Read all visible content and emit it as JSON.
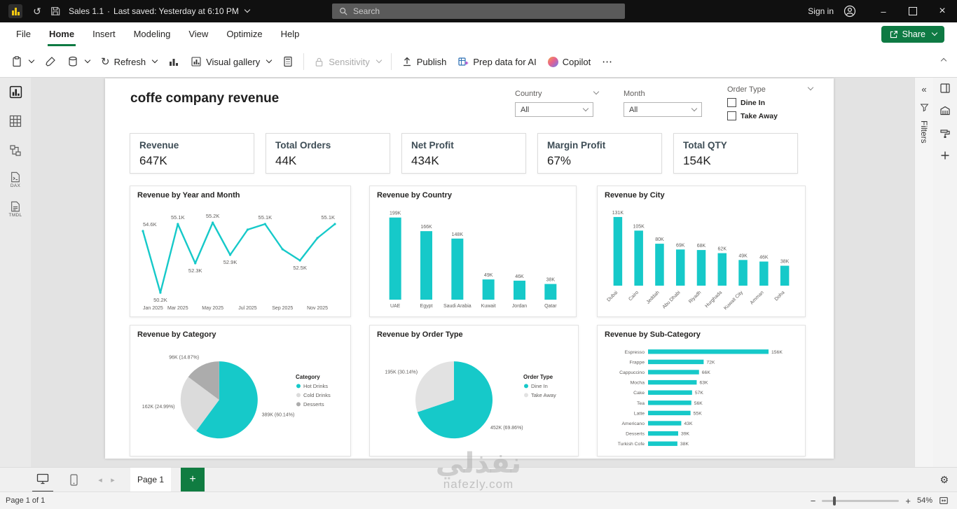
{
  "colors": {
    "accent": "#16C9C9",
    "green": "#0E7A43",
    "pie_gray_light": "#DBDBDB",
    "pie_gray_dark": "#ACACAC"
  },
  "icons": {
    "undo": "↺",
    "refresh": "↻",
    "more": "⋯",
    "gear": "⚙",
    "minimize": "–",
    "close": "×",
    "zoom_in": "+",
    "zoom_out": "−",
    "prev_page": "◂",
    "next_page": "▸",
    "collapse_left": "«",
    "add_page": "+"
  },
  "titlebar": {
    "report_name": "Sales 1.1",
    "separator": "·",
    "saved_status": "Last saved: Yesterday at 6:10 PM",
    "search_placeholder": "Search",
    "sign_in_label": "Sign in"
  },
  "menu": {
    "items": [
      "File",
      "Home",
      "Insert",
      "Modeling",
      "View",
      "Optimize",
      "Help"
    ],
    "share_label": "Share"
  },
  "ribbon": {
    "refresh": "Refresh",
    "visual_gallery": "Visual gallery",
    "sensitivity": "Sensitivity",
    "publish": "Publish",
    "prep_data": "Prep data for AI",
    "copilot": "Copilot"
  },
  "left_rail": {
    "dax_label": "DAX",
    "tmdl_label": "TMDL"
  },
  "filters": {
    "label": "Filters"
  },
  "page": {
    "title": "coffe company revenue",
    "slicers": {
      "country": {
        "label": "Country",
        "value": "All"
      },
      "month": {
        "label": "Month",
        "value": "All"
      },
      "order_type": {
        "label": "Order Type",
        "options": [
          "Dine In",
          "Take Away"
        ]
      }
    },
    "kpis": [
      {
        "label": "Revenue",
        "value": "647K"
      },
      {
        "label": "Total Orders",
        "value": "44K"
      },
      {
        "label": "Net Profit",
        "value": "434K"
      },
      {
        "label": "Margin Profit",
        "value": "67%"
      },
      {
        "label": "Total QTY",
        "value": "154K"
      }
    ]
  },
  "chart_data": [
    {
      "id": "revenue-by-year-and-month",
      "type": "line",
      "title": "Revenue by Year and Month",
      "x": [
        "Jan 2025",
        "Feb 2025",
        "Mar 2025",
        "Apr 2025",
        "May 2025",
        "Jun 2025",
        "Jul 2025",
        "Aug 2025",
        "Sep 2025",
        "Oct 2025",
        "Nov 2025",
        "Dec 2025"
      ],
      "values": [
        54.6,
        50.2,
        55.1,
        52.3,
        55.2,
        52.9,
        54.7,
        55.1,
        53.3,
        52.5,
        54.1,
        55.1
      ],
      "point_labels": [
        "54.6K",
        "50.2K",
        "55.1K",
        "52.3K",
        "55.2K",
        "52.9K",
        "",
        "55.1K",
        "",
        "52.5K",
        "",
        "55.1K"
      ],
      "axis_ticks": [
        "Jan 2025",
        "Mar 2025",
        "May 2025",
        "Jul 2025",
        "Sep 2025",
        "Nov 2025"
      ],
      "ylim": [
        49.9,
        55.7
      ],
      "unit": "K"
    },
    {
      "id": "revenue-by-country",
      "type": "column",
      "title": "Revenue by Country",
      "categories": [
        "UAE",
        "Egypt",
        "Saudi Arabia",
        "Kuwait",
        "Jordan",
        "Qatar"
      ],
      "values": [
        199,
        166,
        148,
        49,
        46,
        38
      ],
      "labels": [
        "199K",
        "166K",
        "148K",
        "49K",
        "46K",
        "38K"
      ],
      "rotate_labels": false
    },
    {
      "id": "revenue-by-city",
      "type": "column",
      "title": "Revenue by City",
      "categories": [
        "Dubai",
        "Cairo",
        "Jeddah",
        "Abu Dhabi",
        "Riyadh",
        "Hurghada",
        "Kuwait City",
        "Amman",
        "Doha"
      ],
      "values": [
        131,
        105,
        80,
        69,
        68,
        62,
        49,
        46,
        38
      ],
      "labels": [
        "131K",
        "105K",
        "80K",
        "69K",
        "68K",
        "62K",
        "49K",
        "46K",
        "38K"
      ],
      "rotate_labels": true
    },
    {
      "id": "revenue-by-category",
      "type": "pie",
      "title": "Revenue by Category",
      "legend_title": "Category",
      "slices": [
        {
          "name": "Hot  Drinks",
          "value": 389,
          "pct": 60.14,
          "label": "389K (60.14%)",
          "color": "#16C9C9"
        },
        {
          "name": "Cold  Drinks",
          "value": 162,
          "pct": 24.99,
          "label": "162K (24.99%)",
          "color": "#DBDBDB"
        },
        {
          "name": "Desserts",
          "value": 96,
          "pct": 14.87,
          "label": "96K (14.87%)",
          "color": "#ACACAC"
        }
      ]
    },
    {
      "id": "revenue-by-order-type",
      "type": "pie",
      "title": "Revenue by Order Type",
      "legend_title": "Order Type",
      "slices": [
        {
          "name": "Dine In",
          "value": 452,
          "pct": 69.86,
          "label": "452K (69.86%)",
          "color": "#16C9C9"
        },
        {
          "name": "Take Away",
          "value": 195,
          "pct": 30.14,
          "label": "195K (30.14%)",
          "color": "#E2E2E2"
        }
      ]
    },
    {
      "id": "revenue-by-sub-category",
      "type": "hbar",
      "title": "Revenue by Sub-Category",
      "categories": [
        "Espresso",
        "Frappe",
        "Cappuccino",
        "Mocha",
        "Cake",
        "Tea",
        "Latte",
        "Americano",
        "Desserts",
        "Turkish Cofe"
      ],
      "values": [
        156,
        72,
        66,
        63,
        57,
        56,
        55,
        43,
        39,
        38
      ],
      "labels": [
        "156K",
        "72K",
        "66K",
        "63K",
        "57K",
        "56K",
        "55K",
        "43K",
        "39K",
        "38K"
      ]
    }
  ],
  "tabs": {
    "page_tab": "Page 1"
  },
  "statusbar": {
    "page_indicator": "Page 1 of 1",
    "zoom": "54%"
  },
  "watermark": {
    "arabic": "نفذلي",
    "domain": "nafezly.com"
  }
}
